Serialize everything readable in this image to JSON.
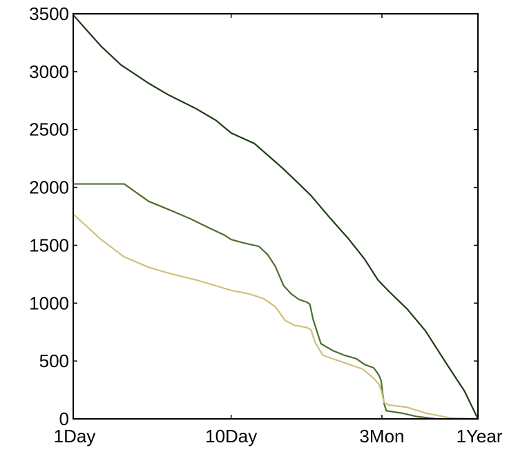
{
  "chart_data": {
    "type": "line",
    "title": "",
    "xlabel": "",
    "ylabel": "",
    "x_scale": "log",
    "x_unit": "days",
    "xlim": [
      1,
      365
    ],
    "ylim": [
      0,
      3500
    ],
    "grid": false,
    "legend": "none",
    "x_ticks": [
      {
        "value": 1,
        "label": "1Day"
      },
      {
        "value": 10,
        "label": "10Day"
      },
      {
        "value": 90,
        "label": "3Mon"
      },
      {
        "value": 365,
        "label": "1Year"
      }
    ],
    "y_ticks": [
      {
        "value": 0,
        "label": "0"
      },
      {
        "value": 500,
        "label": "500"
      },
      {
        "value": 1000,
        "label": "1000"
      },
      {
        "value": 1500,
        "label": "1500"
      },
      {
        "value": 2000,
        "label": "2000"
      },
      {
        "value": 2500,
        "label": "2500"
      },
      {
        "value": 3000,
        "label": "3000"
      },
      {
        "value": 3500,
        "label": "3500"
      }
    ],
    "series": [
      {
        "color": "#1e3a14",
        "points": [
          [
            1,
            3490
          ],
          [
            1.5,
            3220
          ],
          [
            2,
            3060
          ],
          [
            3,
            2900
          ],
          [
            4,
            2800
          ],
          [
            6,
            2680
          ],
          [
            8,
            2580
          ],
          [
            10,
            2470
          ],
          [
            14,
            2380
          ],
          [
            17,
            2280
          ],
          [
            21,
            2170
          ],
          [
            26,
            2050
          ],
          [
            32,
            1930
          ],
          [
            42,
            1740
          ],
          [
            55,
            1560
          ],
          [
            70,
            1380
          ],
          [
            85,
            1200
          ],
          [
            100,
            1100
          ],
          [
            130,
            950
          ],
          [
            170,
            760
          ],
          [
            230,
            480
          ],
          [
            300,
            240
          ],
          [
            365,
            0
          ]
        ]
      },
      {
        "color": "#4e6e2c",
        "points": [
          [
            1,
            2030
          ],
          [
            2.1,
            2030
          ],
          [
            3,
            1880
          ],
          [
            4,
            1810
          ],
          [
            5.5,
            1730
          ],
          [
            7,
            1660
          ],
          [
            9,
            1590
          ],
          [
            10,
            1550
          ],
          [
            12,
            1520
          ],
          [
            15,
            1490
          ],
          [
            17,
            1420
          ],
          [
            19,
            1320
          ],
          [
            21.5,
            1150
          ],
          [
            24,
            1080
          ],
          [
            27,
            1030
          ],
          [
            30,
            1010
          ],
          [
            31.5,
            990
          ],
          [
            33,
            860
          ],
          [
            37,
            650
          ],
          [
            44,
            590
          ],
          [
            52,
            550
          ],
          [
            62,
            520
          ],
          [
            70,
            470
          ],
          [
            80,
            440
          ],
          [
            86,
            380
          ],
          [
            89,
            330
          ],
          [
            91,
            220
          ],
          [
            93,
            130
          ],
          [
            96,
            70
          ],
          [
            120,
            50
          ],
          [
            150,
            20
          ],
          [
            200,
            0
          ],
          [
            365,
            0
          ]
        ]
      },
      {
        "color": "#cfc07c",
        "points": [
          [
            1,
            1770
          ],
          [
            1.5,
            1550
          ],
          [
            2.1,
            1400
          ],
          [
            3,
            1310
          ],
          [
            4,
            1260
          ],
          [
            6,
            1200
          ],
          [
            8,
            1150
          ],
          [
            10,
            1110
          ],
          [
            13,
            1080
          ],
          [
            16,
            1040
          ],
          [
            19,
            970
          ],
          [
            22,
            850
          ],
          [
            25,
            810
          ],
          [
            30,
            790
          ],
          [
            32,
            770
          ],
          [
            34,
            660
          ],
          [
            38,
            550
          ],
          [
            46,
            510
          ],
          [
            56,
            470
          ],
          [
            68,
            430
          ],
          [
            80,
            350
          ],
          [
            86,
            300
          ],
          [
            89,
            250
          ],
          [
            93,
            140
          ],
          [
            100,
            120
          ],
          [
            130,
            100
          ],
          [
            170,
            50
          ],
          [
            240,
            10
          ],
          [
            365,
            0
          ]
        ]
      }
    ]
  }
}
